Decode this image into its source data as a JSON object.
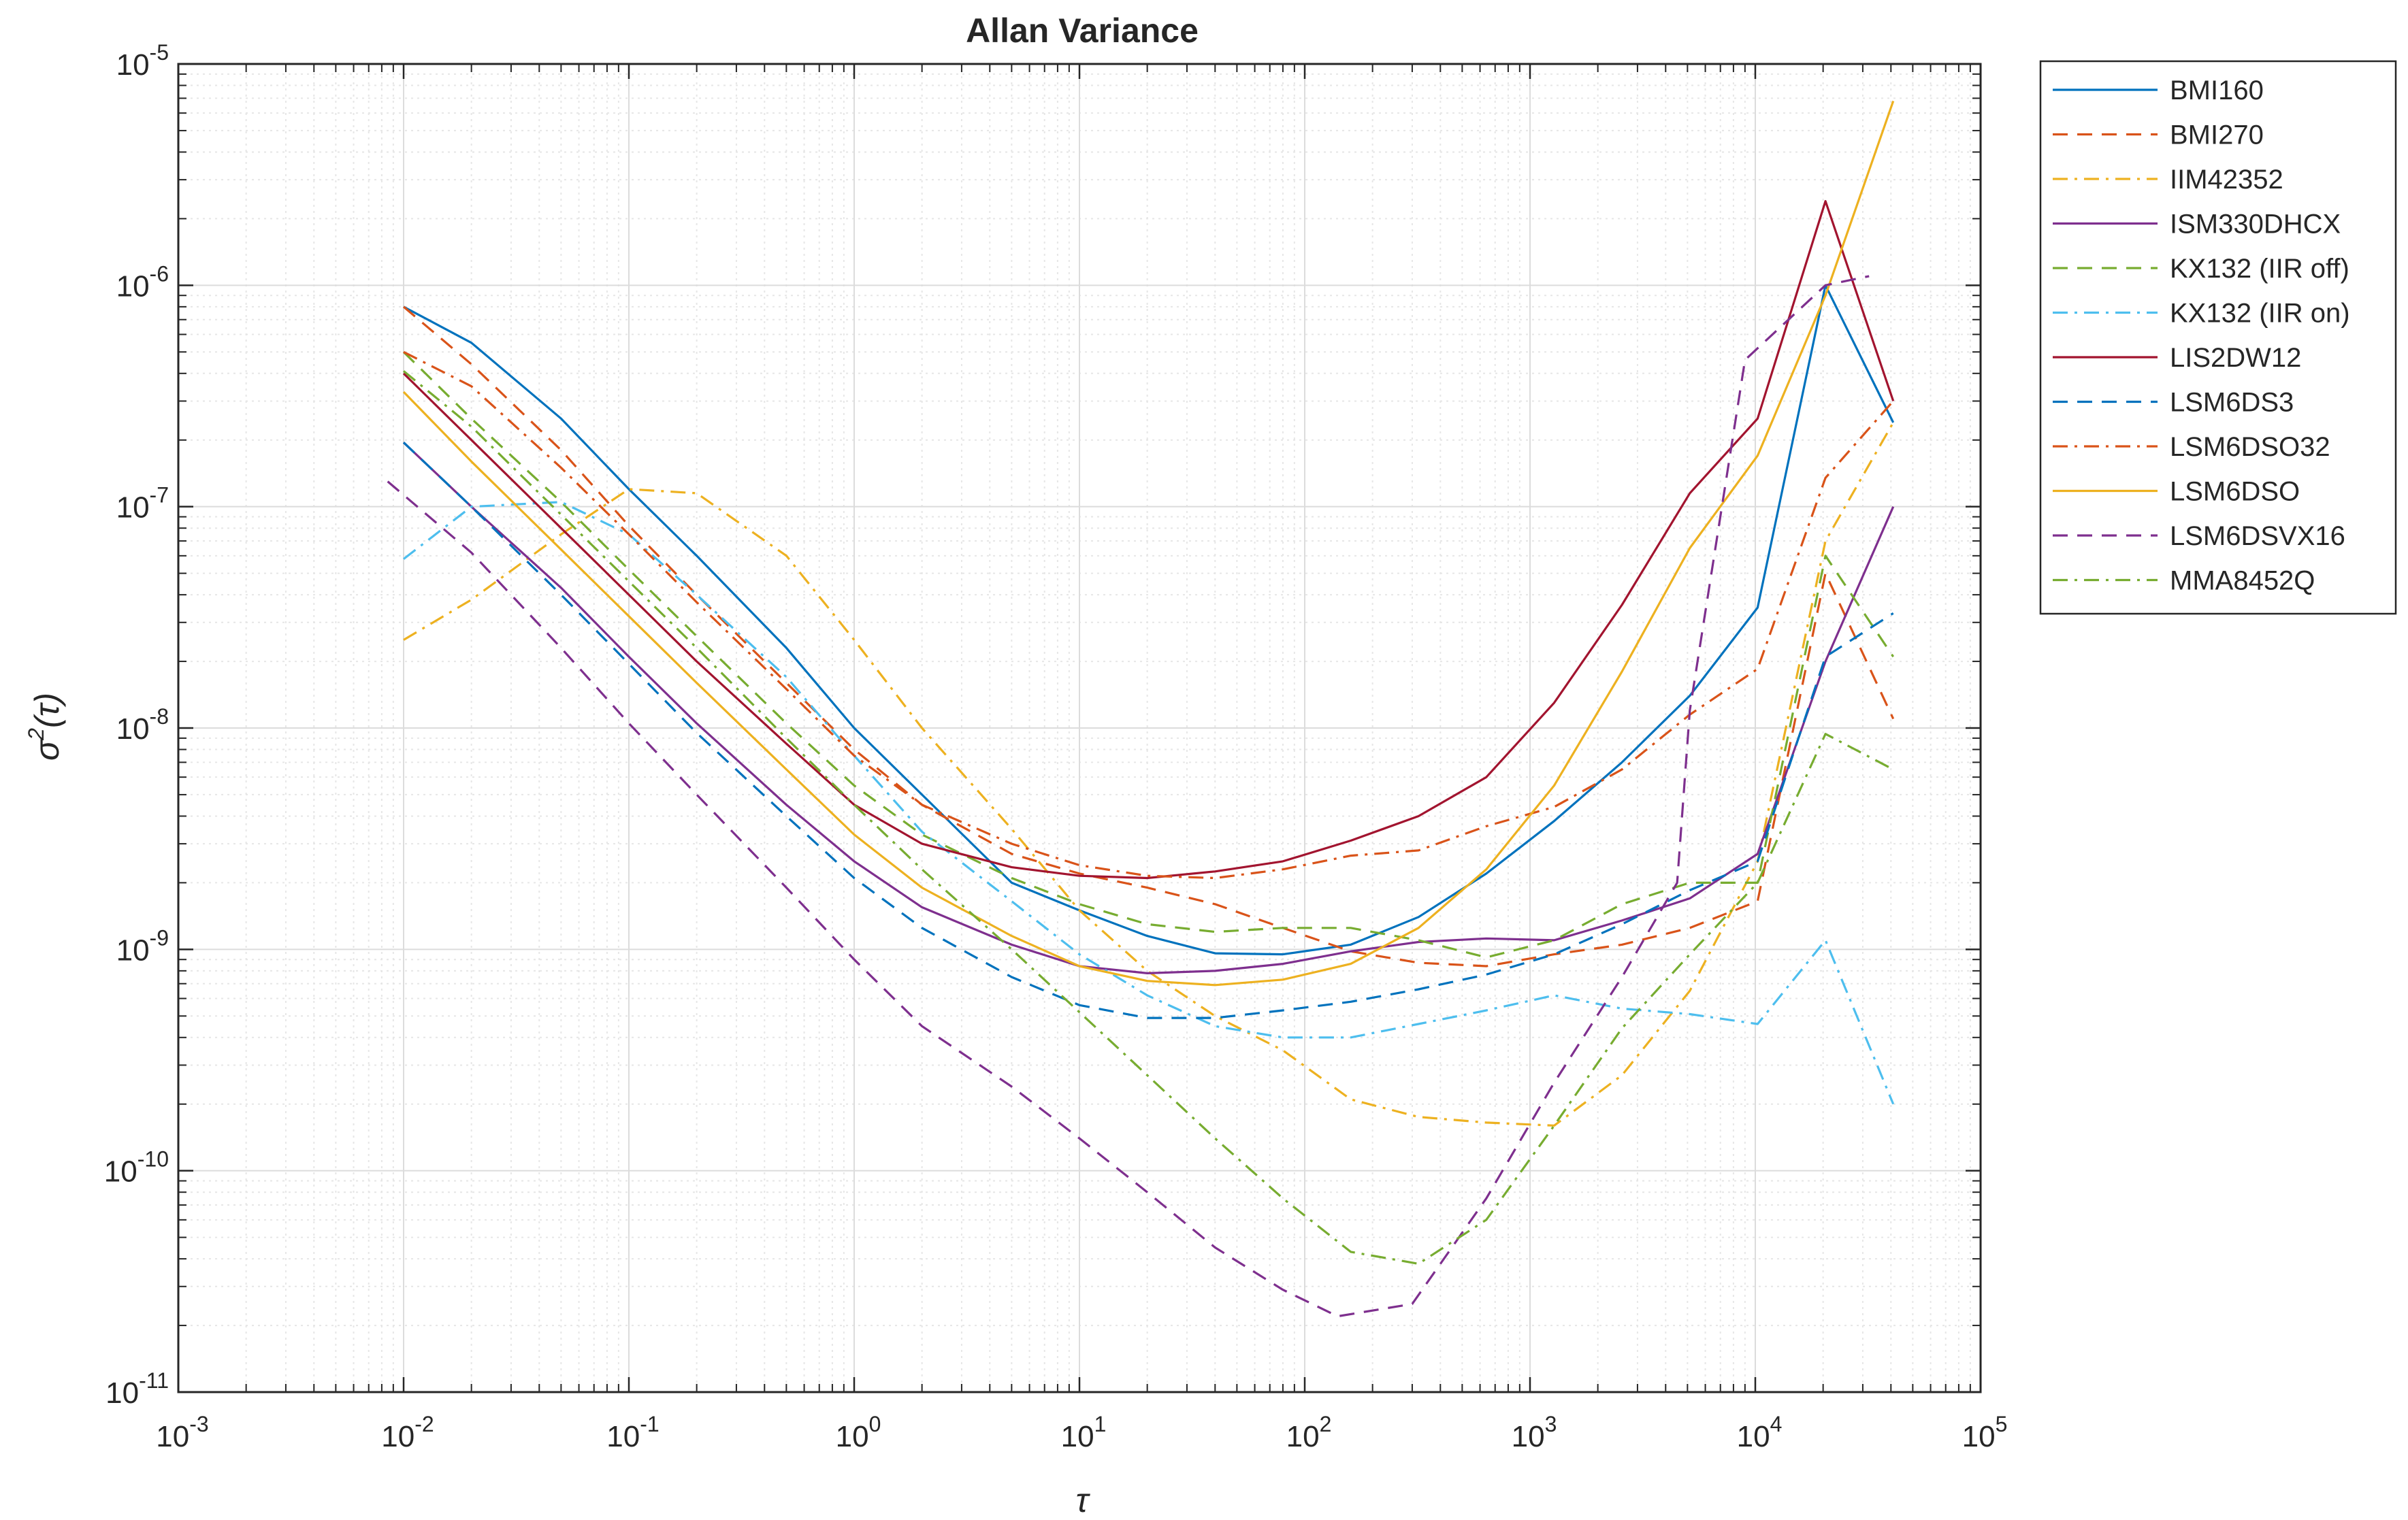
{
  "chart_data": {
    "type": "line",
    "title": "Allan Variance",
    "xlabel": "τ",
    "ylabel_base": "σ",
    "ylabel_sup": "2",
    "ylabel_arg": "(τ)",
    "x_scale": "log",
    "y_scale": "log",
    "xlim": [
      0.001,
      100000
    ],
    "ylim": [
      1e-11,
      1e-05
    ],
    "x_ticks": [
      {
        "base": "10",
        "exp": "-3",
        "value": 0.001
      },
      {
        "base": "10",
        "exp": "-2",
        "value": 0.01
      },
      {
        "base": "10",
        "exp": "-1",
        "value": 0.1
      },
      {
        "base": "10",
        "exp": "0",
        "value": 1
      },
      {
        "base": "10",
        "exp": "1",
        "value": 10
      },
      {
        "base": "10",
        "exp": "2",
        "value": 100
      },
      {
        "base": "10",
        "exp": "3",
        "value": 1000
      },
      {
        "base": "10",
        "exp": "4",
        "value": 10000
      },
      {
        "base": "10",
        "exp": "5",
        "value": 100000
      }
    ],
    "y_ticks": [
      {
        "base": "10",
        "exp": "-11",
        "value": 1e-11
      },
      {
        "base": "10",
        "exp": "-10",
        "value": 1e-10
      },
      {
        "base": "10",
        "exp": "-9",
        "value": 1e-09
      },
      {
        "base": "10",
        "exp": "-8",
        "value": 1e-08
      },
      {
        "base": "10",
        "exp": "-7",
        "value": 1e-07
      },
      {
        "base": "10",
        "exp": "-6",
        "value": 1e-06
      },
      {
        "base": "10",
        "exp": "-5",
        "value": 1e-05
      }
    ],
    "grid": true,
    "minor_grid": true,
    "legend_position": "outside-top-right",
    "series": [
      {
        "name": "BMI160",
        "color": "#0072BD",
        "dash": "solid",
        "points": [
          [
            0.01,
            8e-07
          ],
          [
            0.02,
            5.5e-07
          ],
          [
            0.05,
            2.5e-07
          ],
          [
            0.1,
            1.2e-07
          ],
          [
            0.2,
            6e-08
          ],
          [
            0.5,
            2.3e-08
          ],
          [
            1,
            1e-08
          ],
          [
            2,
            5e-09
          ],
          [
            5,
            2e-09
          ],
          [
            10,
            1.5e-09
          ],
          [
            20,
            1.15e-09
          ],
          [
            40,
            9.6e-10
          ],
          [
            80,
            9.5e-10
          ],
          [
            160,
            1.05e-09
          ],
          [
            320,
            1.4e-09
          ],
          [
            640,
            2.2e-09
          ],
          [
            1280,
            3.8e-09
          ],
          [
            2560,
            7e-09
          ],
          [
            5120,
            1.4e-08
          ],
          [
            10240,
            3.5e-08
          ],
          [
            20480,
            1e-06
          ],
          [
            40960,
            2.4e-07
          ]
        ]
      },
      {
        "name": "BMI270",
        "color": "#D95319",
        "dash": "dashed",
        "points": [
          [
            0.01,
            8e-07
          ],
          [
            0.02,
            4.4e-07
          ],
          [
            0.05,
            1.8e-07
          ],
          [
            0.1,
            8.2e-08
          ],
          [
            0.2,
            4e-08
          ],
          [
            0.5,
            1.6e-08
          ],
          [
            1,
            8e-09
          ],
          [
            2,
            4.5e-09
          ],
          [
            5,
            2.7e-09
          ],
          [
            10,
            2.2e-09
          ],
          [
            20,
            1.9e-09
          ],
          [
            40,
            1.6e-09
          ],
          [
            80,
            1.25e-09
          ],
          [
            160,
            9.8e-10
          ],
          [
            320,
            8.7e-10
          ],
          [
            640,
            8.4e-10
          ],
          [
            1280,
            9.5e-10
          ],
          [
            2560,
            1.05e-09
          ],
          [
            5120,
            1.25e-09
          ],
          [
            10240,
            1.65e-09
          ],
          [
            20480,
            5e-08
          ],
          [
            40960,
            1.1e-08
          ]
        ]
      },
      {
        "name": "IIM42352",
        "color": "#EDB120",
        "dash": "dashdot",
        "points": [
          [
            0.01,
            2.5e-08
          ],
          [
            0.02,
            3.8e-08
          ],
          [
            0.05,
            7.5e-08
          ],
          [
            0.1,
            1.2e-07
          ],
          [
            0.2,
            1.15e-07
          ],
          [
            0.5,
            6e-08
          ],
          [
            1,
            2.5e-08
          ],
          [
            2,
            1e-08
          ],
          [
            5,
            3.5e-09
          ],
          [
            10,
            1.5e-09
          ],
          [
            20,
            8e-10
          ],
          [
            40,
            5e-10
          ],
          [
            80,
            3.5e-10
          ],
          [
            160,
            2.1e-10
          ],
          [
            320,
            1.75e-10
          ],
          [
            640,
            1.65e-10
          ],
          [
            1280,
            1.6e-10
          ],
          [
            2560,
            2.7e-10
          ],
          [
            5120,
            6.5e-10
          ],
          [
            10240,
            2.5e-09
          ],
          [
            20480,
            7e-08
          ],
          [
            40960,
            2.4e-07
          ]
        ]
      },
      {
        "name": "ISM330DHCX",
        "color": "#7E2F8E",
        "dash": "solid",
        "points": [
          [
            0.01,
            1.95e-07
          ],
          [
            0.02,
            1e-07
          ],
          [
            0.05,
            4.3e-08
          ],
          [
            0.1,
            2.1e-08
          ],
          [
            0.2,
            1.05e-08
          ],
          [
            0.5,
            4.5e-09
          ],
          [
            1,
            2.5e-09
          ],
          [
            2,
            1.55e-09
          ],
          [
            5,
            1.05e-09
          ],
          [
            10,
            8.4e-10
          ],
          [
            20,
            7.8e-10
          ],
          [
            40,
            8e-10
          ],
          [
            80,
            8.6e-10
          ],
          [
            160,
            9.8e-10
          ],
          [
            320,
            1.08e-09
          ],
          [
            640,
            1.12e-09
          ],
          [
            1280,
            1.1e-09
          ],
          [
            2560,
            1.35e-09
          ],
          [
            5120,
            1.7e-09
          ],
          [
            10240,
            2.7e-09
          ],
          [
            20480,
            2e-08
          ],
          [
            40960,
            1e-07
          ]
        ]
      },
      {
        "name": "KX132 (IIR off)",
        "color": "#77AC30",
        "dash": "dashed",
        "points": [
          [
            0.01,
            5e-07
          ],
          [
            0.02,
            2.5e-07
          ],
          [
            0.05,
            1.05e-07
          ],
          [
            0.1,
            5.2e-08
          ],
          [
            0.2,
            2.6e-08
          ],
          [
            0.5,
            1.05e-08
          ],
          [
            1,
            5.5e-09
          ],
          [
            2,
            3.3e-09
          ],
          [
            5,
            2.1e-09
          ],
          [
            10,
            1.6e-09
          ],
          [
            20,
            1.3e-09
          ],
          [
            40,
            1.2e-09
          ],
          [
            80,
            1.25e-09
          ],
          [
            160,
            1.25e-09
          ],
          [
            320,
            1.1e-09
          ],
          [
            640,
            9.2e-10
          ],
          [
            1280,
            1.1e-09
          ],
          [
            2560,
            1.6e-09
          ],
          [
            5120,
            2e-09
          ],
          [
            10240,
            2e-09
          ],
          [
            20480,
            6e-08
          ],
          [
            40960,
            2.1e-08
          ]
        ]
      },
      {
        "name": "KX132 (IIR on)",
        "color": "#4DBEEE",
        "dash": "dashdot",
        "points": [
          [
            0.01,
            5.8e-08
          ],
          [
            0.02,
            1e-07
          ],
          [
            0.05,
            1.05e-07
          ],
          [
            0.1,
            7.5e-08
          ],
          [
            0.2,
            4e-08
          ],
          [
            0.5,
            1.7e-08
          ],
          [
            1,
            7.5e-09
          ],
          [
            2,
            3.4e-09
          ],
          [
            5,
            1.65e-09
          ],
          [
            10,
            9.5e-10
          ],
          [
            20,
            6.2e-10
          ],
          [
            40,
            4.5e-10
          ],
          [
            80,
            4e-10
          ],
          [
            160,
            4e-10
          ],
          [
            320,
            4.6e-10
          ],
          [
            640,
            5.3e-10
          ],
          [
            1280,
            6.2e-10
          ],
          [
            2560,
            5.4e-10
          ],
          [
            5120,
            5.1e-10
          ],
          [
            10240,
            4.6e-10
          ],
          [
            20480,
            1.1e-09
          ],
          [
            40960,
            2e-10
          ]
        ]
      },
      {
        "name": "LIS2DW12",
        "color": "#A2142F",
        "dash": "solid",
        "points": [
          [
            0.01,
            4e-07
          ],
          [
            0.02,
            2e-07
          ],
          [
            0.05,
            8e-08
          ],
          [
            0.1,
            4e-08
          ],
          [
            0.2,
            2e-08
          ],
          [
            0.5,
            8.5e-09
          ],
          [
            1,
            4.5e-09
          ],
          [
            2,
            3e-09
          ],
          [
            5,
            2.35e-09
          ],
          [
            10,
            2.15e-09
          ],
          [
            20,
            2.1e-09
          ],
          [
            40,
            2.25e-09
          ],
          [
            80,
            2.5e-09
          ],
          [
            160,
            3.1e-09
          ],
          [
            320,
            4e-09
          ],
          [
            640,
            6e-09
          ],
          [
            1280,
            1.3e-08
          ],
          [
            2560,
            3.6e-08
          ],
          [
            5120,
            1.15e-07
          ],
          [
            10240,
            2.5e-07
          ],
          [
            20480,
            2.4e-06
          ],
          [
            40960,
            3e-07
          ]
        ]
      },
      {
        "name": "LSM6DS3",
        "color": "#0072BD",
        "dash": "dashed",
        "points": [
          [
            0.01,
            1.95e-07
          ],
          [
            0.02,
            1e-07
          ],
          [
            0.05,
            4e-08
          ],
          [
            0.1,
            1.95e-08
          ],
          [
            0.2,
            9.5e-09
          ],
          [
            0.5,
            4e-09
          ],
          [
            1,
            2.1e-09
          ],
          [
            2,
            1.25e-09
          ],
          [
            5,
            7.5e-10
          ],
          [
            10,
            5.6e-10
          ],
          [
            20,
            4.9e-10
          ],
          [
            40,
            4.9e-10
          ],
          [
            80,
            5.3e-10
          ],
          [
            160,
            5.8e-10
          ],
          [
            320,
            6.6e-10
          ],
          [
            640,
            7.7e-10
          ],
          [
            1280,
            9.5e-10
          ],
          [
            2560,
            1.3e-09
          ],
          [
            5120,
            1.85e-09
          ],
          [
            10240,
            2.5e-09
          ],
          [
            20480,
            2.1e-08
          ],
          [
            40960,
            3.3e-08
          ]
        ]
      },
      {
        "name": "LSM6DSO32",
        "color": "#D95319",
        "dash": "dashdot",
        "points": [
          [
            0.01,
            5e-07
          ],
          [
            0.02,
            3.5e-07
          ],
          [
            0.05,
            1.5e-07
          ],
          [
            0.1,
            7.5e-08
          ],
          [
            0.2,
            3.7e-08
          ],
          [
            0.5,
            1.5e-08
          ],
          [
            1,
            7.5e-09
          ],
          [
            2,
            4.5e-09
          ],
          [
            5,
            3e-09
          ],
          [
            10,
            2.4e-09
          ],
          [
            20,
            2.15e-09
          ],
          [
            40,
            2.1e-09
          ],
          [
            80,
            2.3e-09
          ],
          [
            160,
            2.65e-09
          ],
          [
            320,
            2.8e-09
          ],
          [
            640,
            3.6e-09
          ],
          [
            1280,
            4.4e-09
          ],
          [
            2560,
            6.5e-09
          ],
          [
            5120,
            1.15e-08
          ],
          [
            10240,
            1.85e-08
          ],
          [
            20480,
            1.35e-07
          ],
          [
            40960,
            3e-07
          ]
        ]
      },
      {
        "name": "LSM6DSO",
        "color": "#EDB120",
        "dash": "solid",
        "points": [
          [
            0.01,
            3.3e-07
          ],
          [
            0.02,
            1.6e-07
          ],
          [
            0.05,
            6.4e-08
          ],
          [
            0.1,
            3.2e-08
          ],
          [
            0.2,
            1.6e-08
          ],
          [
            0.5,
            6.5e-09
          ],
          [
            1,
            3.3e-09
          ],
          [
            2,
            1.9e-09
          ],
          [
            5,
            1.15e-09
          ],
          [
            10,
            8.4e-10
          ],
          [
            20,
            7.2e-10
          ],
          [
            40,
            6.9e-10
          ],
          [
            80,
            7.3e-10
          ],
          [
            160,
            8.6e-10
          ],
          [
            320,
            1.25e-09
          ],
          [
            640,
            2.3e-09
          ],
          [
            1280,
            5.5e-09
          ],
          [
            2560,
            1.8e-08
          ],
          [
            5120,
            6.5e-08
          ],
          [
            10240,
            1.7e-07
          ],
          [
            20480,
            9e-07
          ],
          [
            40960,
            6.8e-06
          ]
        ]
      },
      {
        "name": "LSM6DSVX16",
        "color": "#7E2F8E",
        "dash": "dashed",
        "points": [
          [
            0.0085,
            1.3e-07
          ],
          [
            0.02,
            6.2e-08
          ],
          [
            0.05,
            2.3e-08
          ],
          [
            0.1,
            1.05e-08
          ],
          [
            0.2,
            5e-09
          ],
          [
            0.5,
            1.9e-09
          ],
          [
            1,
            9e-10
          ],
          [
            2,
            4.5e-10
          ],
          [
            5,
            2.4e-10
          ],
          [
            10,
            1.4e-10
          ],
          [
            20,
            8e-11
          ],
          [
            40,
            4.5e-11
          ],
          [
            80,
            2.9e-11
          ],
          [
            140,
            2.2e-11
          ],
          [
            300,
            2.5e-11
          ],
          [
            640,
            7.5e-11
          ],
          [
            1280,
            2.5e-10
          ],
          [
            2560,
            7.5e-10
          ],
          [
            4500,
            2e-09
          ],
          [
            5120,
            1.2e-08
          ],
          [
            9000,
            4.6e-07
          ],
          [
            20480,
            1e-06
          ],
          [
            32000,
            1.1e-06
          ]
        ]
      },
      {
        "name": "MMA8452Q",
        "color": "#77AC30",
        "dash": "dashdot",
        "points": [
          [
            0.01,
            4.1e-07
          ],
          [
            0.02,
            2.3e-07
          ],
          [
            0.05,
            9.2e-08
          ],
          [
            0.1,
            4.6e-08
          ],
          [
            0.2,
            2.3e-08
          ],
          [
            0.5,
            9e-09
          ],
          [
            1,
            4.5e-09
          ],
          [
            2,
            2.3e-09
          ],
          [
            5,
            1e-09
          ],
          [
            10,
            5.2e-10
          ],
          [
            20,
            2.7e-10
          ],
          [
            40,
            1.4e-10
          ],
          [
            80,
            7.5e-11
          ],
          [
            160,
            4.3e-11
          ],
          [
            320,
            3.8e-11
          ],
          [
            640,
            6e-11
          ],
          [
            1280,
            1.6e-10
          ],
          [
            2560,
            4.4e-10
          ],
          [
            5120,
            9.5e-10
          ],
          [
            10240,
            2e-09
          ],
          [
            20480,
            9.4e-09
          ],
          [
            40960,
            6.5e-09
          ]
        ]
      }
    ]
  }
}
